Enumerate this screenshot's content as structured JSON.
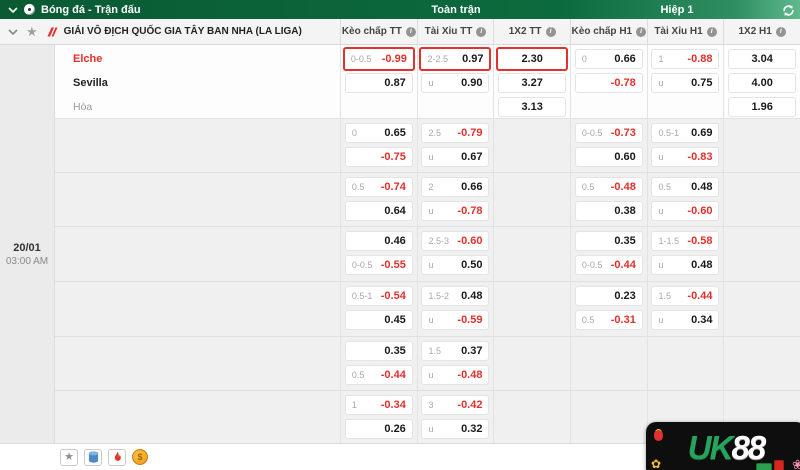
{
  "topbar": {
    "title": "Bóng đá - Trận đấu",
    "full_time": "Toàn trận",
    "first_half": "Hiệp 1"
  },
  "league": {
    "name": "GIẢI VÔ ĐỊCH QUỐC GIA TÂY BAN NHA (LA LIGA)"
  },
  "columns": [
    "Kèo chấp TT",
    "Tài Xỉu TT",
    "1X2 TT",
    "Kèo chấp H1",
    "Tài Xỉu H1",
    "1X2 H1"
  ],
  "match": {
    "date": "20/01",
    "time": "03:00 AM",
    "home": "Elche",
    "away": "Sevilla",
    "draw": "Hòa"
  },
  "odds_bands": [
    {
      "hcp_tt": [
        {
          "h": "0-0.5",
          "v": "-0.99",
          "box": true
        },
        {
          "h": "",
          "v": "0.87"
        }
      ],
      "ou_tt": [
        {
          "h": "2-2.5",
          "v": "0.97",
          "box": true
        },
        {
          "h": "u",
          "v": "0.90"
        }
      ],
      "x12_tt": [
        {
          "v": "2.30",
          "box": true
        },
        {
          "v": "3.27"
        },
        {
          "v": "3.13"
        }
      ],
      "hcp_h1": [
        {
          "h": "0",
          "v": "0.66"
        },
        {
          "h": "",
          "v": "-0.78"
        }
      ],
      "ou_h1": [
        {
          "h": "1",
          "v": "-0.88"
        },
        {
          "h": "u",
          "v": "0.75"
        }
      ],
      "x12_h1": [
        {
          "v": "3.04"
        },
        {
          "v": "4.00"
        },
        {
          "v": "1.96"
        }
      ]
    },
    {
      "hcp_tt": [
        {
          "h": "0",
          "v": "0.65"
        },
        {
          "h": "",
          "v": "-0.75"
        }
      ],
      "ou_tt": [
        {
          "h": "2.5",
          "v": "-0.79"
        },
        {
          "h": "u",
          "v": "0.67"
        }
      ],
      "x12_tt": [],
      "hcp_h1": [
        {
          "h": "0-0.5",
          "v": "-0.73"
        },
        {
          "h": "",
          "v": "0.60"
        }
      ],
      "ou_h1": [
        {
          "h": "0.5-1",
          "v": "0.69"
        },
        {
          "h": "u",
          "v": "-0.83"
        }
      ],
      "x12_h1": []
    },
    {
      "hcp_tt": [
        {
          "h": "0.5",
          "v": "-0.74"
        },
        {
          "h": "",
          "v": "0.64"
        }
      ],
      "ou_tt": [
        {
          "h": "2",
          "v": "0.66"
        },
        {
          "h": "u",
          "v": "-0.78"
        }
      ],
      "x12_tt": [],
      "hcp_h1": [
        {
          "h": "0.5",
          "v": "-0.48"
        },
        {
          "h": "",
          "v": "0.38"
        }
      ],
      "ou_h1": [
        {
          "h": "0.5",
          "v": "0.48"
        },
        {
          "h": "u",
          "v": "-0.60"
        }
      ],
      "x12_h1": []
    },
    {
      "hcp_tt": [
        {
          "h": "",
          "v": "0.46"
        },
        {
          "h": "0-0.5",
          "v": "-0.55"
        }
      ],
      "ou_tt": [
        {
          "h": "2.5-3",
          "v": "-0.60"
        },
        {
          "h": "u",
          "v": "0.50"
        }
      ],
      "x12_tt": [],
      "hcp_h1": [
        {
          "h": "",
          "v": "0.35"
        },
        {
          "h": "0-0.5",
          "v": "-0.44"
        }
      ],
      "ou_h1": [
        {
          "h": "1-1.5",
          "v": "-0.58"
        },
        {
          "h": "u",
          "v": "0.48"
        }
      ],
      "x12_h1": []
    },
    {
      "hcp_tt": [
        {
          "h": "0.5-1",
          "v": "-0.54"
        },
        {
          "h": "",
          "v": "0.45"
        }
      ],
      "ou_tt": [
        {
          "h": "1.5-2",
          "v": "0.48"
        },
        {
          "h": "u",
          "v": "-0.59"
        }
      ],
      "x12_tt": [],
      "hcp_h1": [
        {
          "h": "",
          "v": "0.23"
        },
        {
          "h": "0.5",
          "v": "-0.31"
        }
      ],
      "ou_h1": [
        {
          "h": "1.5",
          "v": "-0.44"
        },
        {
          "h": "u",
          "v": "0.34"
        }
      ],
      "x12_h1": []
    },
    {
      "hcp_tt": [
        {
          "h": "",
          "v": "0.35"
        },
        {
          "h": "0.5",
          "v": "-0.44"
        }
      ],
      "ou_tt": [
        {
          "h": "1.5",
          "v": "0.37"
        },
        {
          "h": "u",
          "v": "-0.48"
        }
      ],
      "x12_tt": [],
      "hcp_h1": [],
      "ou_h1": [],
      "x12_h1": []
    },
    {
      "hcp_tt": [
        {
          "h": "1",
          "v": "-0.34"
        },
        {
          "h": "",
          "v": "0.26"
        }
      ],
      "ou_tt": [
        {
          "h": "3",
          "v": "-0.42"
        },
        {
          "h": "u",
          "v": "0.32"
        }
      ],
      "x12_tt": [],
      "hcp_h1": [],
      "ou_h1": [],
      "x12_h1": []
    }
  ],
  "watermark": {
    "uk": "UK",
    "n88": "88"
  }
}
